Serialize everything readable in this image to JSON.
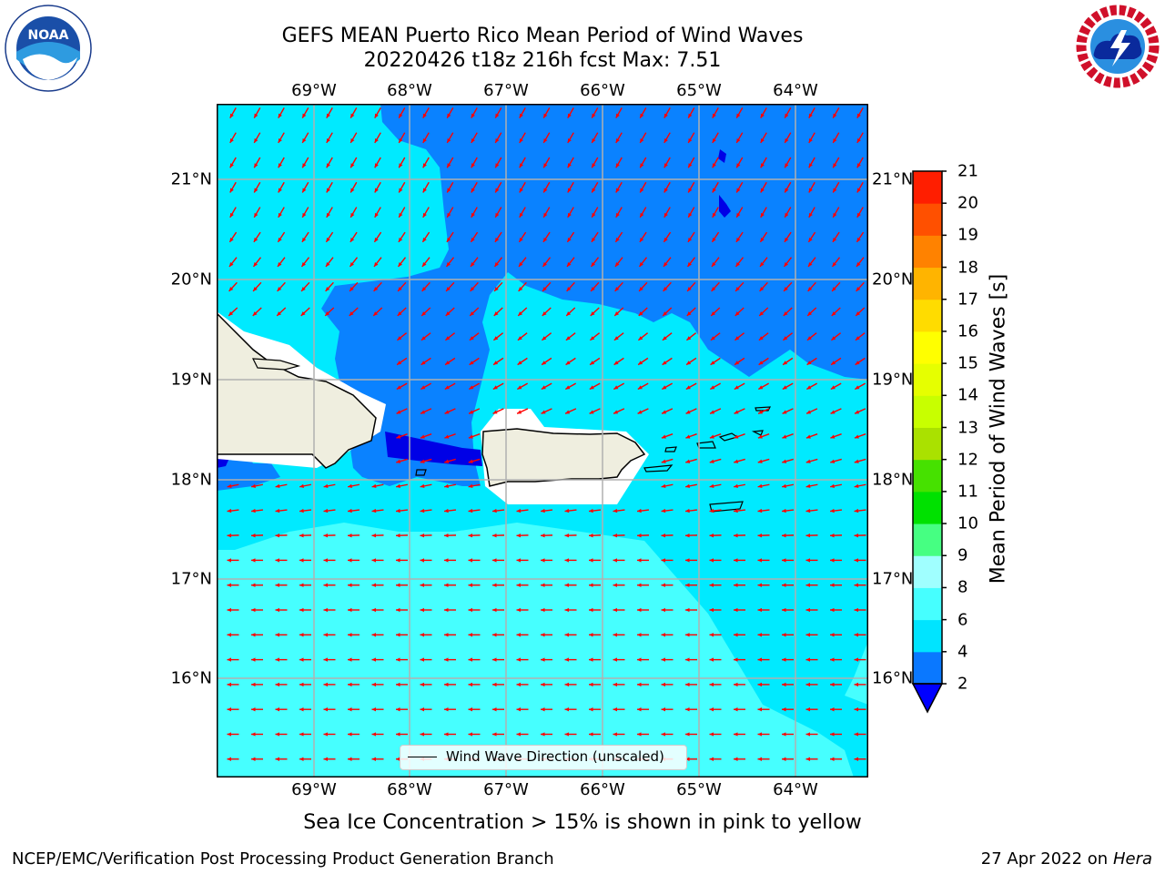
{
  "header": {
    "title_line1": "GEFS MEAN Puerto Rico Mean Period of Wind Waves",
    "title_line2": "20220426 t18z 216h fcst   Max: 7.51"
  },
  "logos": {
    "left": {
      "name": "noaa-logo",
      "text": "NOAA"
    },
    "right": {
      "name": "national-weather-service-logo",
      "text": "NATIONAL WEATHER SERVICE"
    }
  },
  "map": {
    "lon_labels": [
      "69°W",
      "68°W",
      "67°W",
      "66°W",
      "65°W",
      "64°W"
    ],
    "lat_labels": [
      "21°N",
      "20°N",
      "19°N",
      "18°N",
      "17°N",
      "16°N"
    ],
    "lon_range": [
      -70,
      -63.25
    ],
    "lat_range": [
      15,
      21.75
    ],
    "grid": true,
    "vector_color": "#ff0000",
    "land_color": "#efeedf",
    "legend_text": "Wind Wave Direction (unscaled)",
    "legend_placement": "bottom-center"
  },
  "colorbar": {
    "label": "Mean Period of Wind Waves [s]",
    "ticks": [
      "2",
      "4",
      "6",
      "8",
      "9",
      "10",
      "11",
      "12",
      "13",
      "14",
      "15",
      "16",
      "17",
      "18",
      "19",
      "20",
      "21"
    ],
    "colors": [
      "#0a78ff",
      "#00e4ff",
      "#46ffff",
      "#a0ffff",
      "#46ff82",
      "#00e100",
      "#46e100",
      "#aae100",
      "#c8ff00",
      "#e6ff00",
      "#ffff00",
      "#ffdc00",
      "#ffb400",
      "#ff8200",
      "#ff5000",
      "#ff1e00"
    ],
    "extend_color": "#0000ff"
  },
  "footer": {
    "subtitle": "Sea Ice Concentration > 15% is shown in pink to yellow",
    "left": "NCEP/EMC/Verification Post Processing Product Generation Branch",
    "right_date": "27 Apr 2022 on",
    "right_host": "Hera"
  }
}
